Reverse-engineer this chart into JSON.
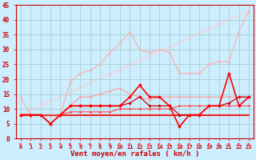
{
  "title": "",
  "xlabel": "Vent moyen/en rafales ( km/h )",
  "ylabel": "",
  "bg_color": "#cceeff",
  "grid_color": "#aacccc",
  "x_max": 23,
  "y_max": 45,
  "y_min": 0,
  "lines": [
    {
      "x": [
        0,
        1,
        2,
        3,
        4,
        5,
        6,
        7,
        8,
        9,
        10,
        11,
        12,
        13,
        14,
        15,
        16,
        17,
        18,
        19,
        20,
        21,
        22,
        23
      ],
      "y": [
        14,
        8,
        8,
        8,
        8,
        19,
        22,
        23,
        25,
        29,
        32,
        36,
        30,
        29,
        30,
        29,
        22,
        22,
        22,
        25,
        26,
        26,
        36,
        43
      ],
      "color": "#ffaaaa",
      "lw": 0.8,
      "marker": "o",
      "ms": 1.5,
      "zorder": 2
    },
    {
      "x": [
        0,
        23
      ],
      "y": [
        8,
        43
      ],
      "color": "#ffcccc",
      "lw": 0.9,
      "marker": null,
      "ms": 0,
      "zorder": 1
    },
    {
      "x": [
        0,
        1,
        2,
        3,
        4,
        5,
        6,
        7,
        8,
        9,
        10,
        11,
        12,
        13,
        14,
        15,
        16,
        17,
        18,
        19,
        20,
        21,
        22,
        23
      ],
      "y": [
        8,
        8,
        8,
        8,
        8,
        11,
        14,
        14,
        15,
        16,
        17,
        15,
        14,
        13,
        14,
        14,
        14,
        14,
        14,
        14,
        14,
        14,
        14,
        14
      ],
      "color": "#ff9999",
      "lw": 0.8,
      "marker": "o",
      "ms": 1.5,
      "zorder": 3
    },
    {
      "x": [
        0,
        1,
        2,
        3,
        4,
        5,
        6,
        7,
        8,
        9,
        10,
        11,
        12,
        13,
        14,
        15,
        16,
        17,
        18,
        19,
        20,
        21,
        22,
        23
      ],
      "y": [
        8,
        8,
        8,
        5,
        8,
        11,
        11,
        11,
        11,
        11,
        11,
        14,
        18,
        14,
        14,
        11,
        4,
        8,
        8,
        11,
        11,
        22,
        11,
        14
      ],
      "color": "#ff0000",
      "lw": 1.2,
      "marker": "D",
      "ms": 2.0,
      "zorder": 6
    },
    {
      "x": [
        0,
        1,
        2,
        3,
        4,
        5,
        6,
        7,
        8,
        9,
        10,
        11,
        12,
        13,
        14,
        15,
        16,
        17,
        18,
        19,
        20,
        21,
        22,
        23
      ],
      "y": [
        8,
        8,
        8,
        5,
        8,
        11,
        11,
        11,
        11,
        11,
        11,
        12,
        14,
        11,
        11,
        11,
        8,
        8,
        8,
        11,
        11,
        12,
        14,
        14
      ],
      "color": "#cc0000",
      "lw": 0.9,
      "marker": "D",
      "ms": 1.8,
      "zorder": 5
    },
    {
      "x": [
        0,
        1,
        2,
        3,
        4,
        5,
        6,
        7,
        8,
        9,
        10,
        11,
        12,
        13,
        14,
        15,
        16,
        17,
        18,
        19,
        20,
        21,
        22,
        23
      ],
      "y": [
        8,
        8,
        8,
        8,
        8,
        9,
        9,
        9,
        9,
        9,
        10,
        10,
        10,
        10,
        10,
        10,
        11,
        11,
        11,
        11,
        11,
        11,
        11,
        11
      ],
      "color": "#ff4444",
      "lw": 0.8,
      "marker": "D",
      "ms": 1.5,
      "zorder": 4
    },
    {
      "x": [
        0,
        1,
        2,
        3,
        4,
        5,
        6,
        7,
        8,
        9,
        10,
        11,
        12,
        13,
        14,
        15,
        16,
        17,
        18,
        19,
        20,
        21,
        22,
        23
      ],
      "y": [
        8,
        8,
        8,
        8,
        8,
        8,
        8,
        8,
        8,
        8,
        8,
        8,
        8,
        8,
        8,
        8,
        8,
        8,
        8,
        8,
        8,
        8,
        8,
        8
      ],
      "color": "#ee2222",
      "lw": 1.5,
      "marker": null,
      "ms": 0,
      "zorder": 3
    }
  ],
  "arrow_color": "#ff3333",
  "xtick_labels": [
    "0",
    "1",
    "2",
    "3",
    "4",
    "5",
    "6",
    "7",
    "8",
    "9",
    "10",
    "11",
    "12",
    "13",
    "14",
    "15",
    "16",
    "17",
    "18",
    "19",
    "20",
    "21",
    "22",
    "23"
  ],
  "ytick_vals": [
    0,
    5,
    10,
    15,
    20,
    25,
    30,
    35,
    40,
    45
  ]
}
